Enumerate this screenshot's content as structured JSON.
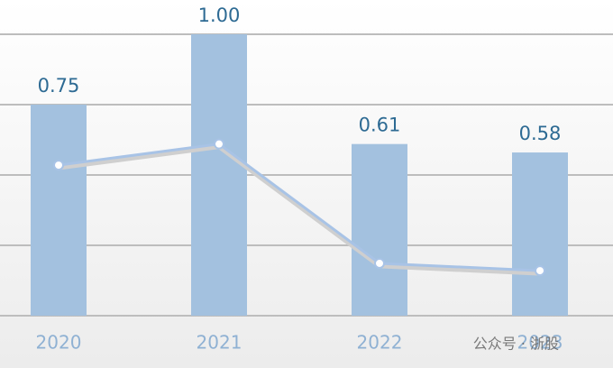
{
  "chart_data": {
    "type": "bar",
    "categories": [
      "2020",
      "2021",
      "2022",
      "2023"
    ],
    "series": [
      {
        "type": "bar",
        "color": "#a3c1df",
        "values": [
          0.75,
          1.0,
          0.61,
          0.58
        ],
        "value_labels": [
          "0.75",
          "1.00",
          "0.61",
          "0.58"
        ]
      },
      {
        "type": "line",
        "color": "#a8c3e6",
        "values": [
          0.535,
          0.61,
          0.186,
          0.16
        ]
      }
    ],
    "ylim": [
      0,
      1
    ],
    "yticks": [
      0,
      0.25,
      0.5,
      0.75,
      1
    ],
    "grid": true,
    "watermark": "公众号 · 浙股"
  }
}
